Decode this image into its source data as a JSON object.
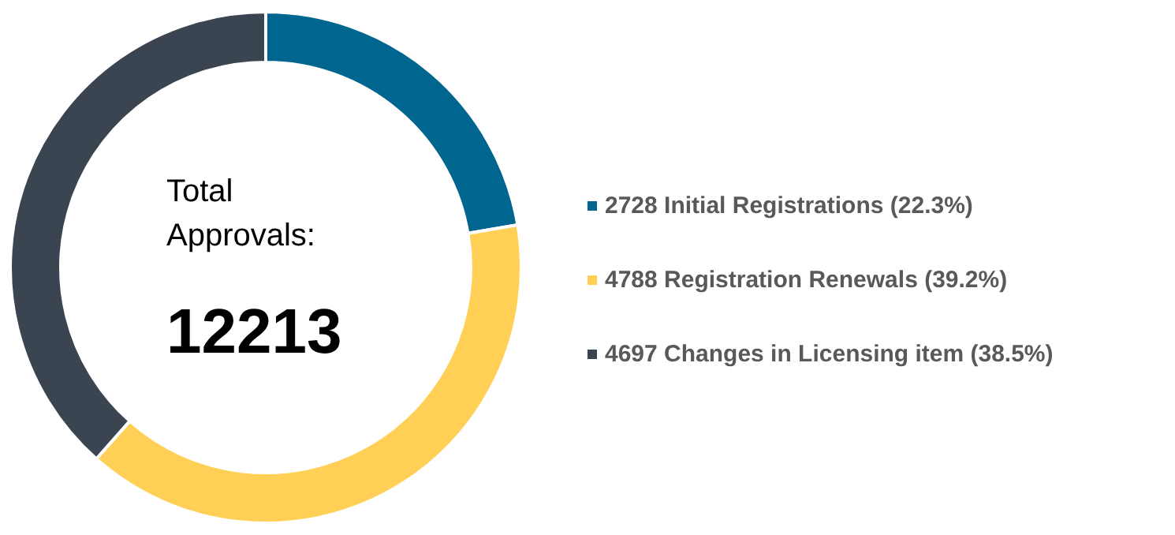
{
  "chart_data": {
    "type": "donut",
    "categories": [
      "2728 Initial Registrations (22.3%)",
      "4788 Registration Renewals (39.2%)",
      "4697 Changes in Licensing item (38.5%)"
    ],
    "values": [
      2728,
      4788,
      4697
    ],
    "colors": [
      "#006690",
      "#ffd055",
      "#3b4451"
    ],
    "annotations": [
      "Total Approvals:",
      "12213"
    ],
    "legend": "right"
  }
}
